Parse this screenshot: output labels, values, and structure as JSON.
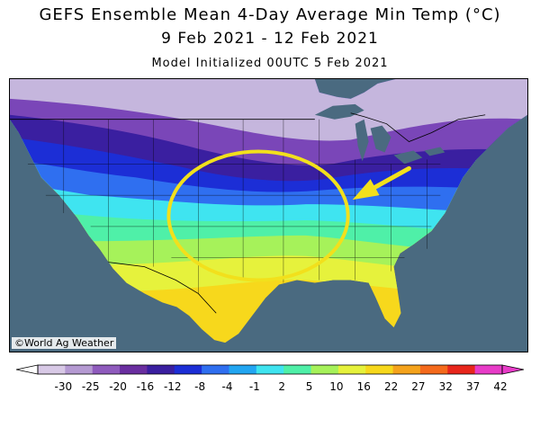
{
  "header": {
    "title": "GEFS Ensemble Mean 4-Day Average Min Temp (°C)",
    "date_range": "9 Feb 2021 - 12 Feb 2021",
    "init": "Model Initialized 00UTC 5 Feb 2021"
  },
  "credit": "©World Ag Weather",
  "legend": {
    "ticks": [
      "-30",
      "-25",
      "-20",
      "-16",
      "-12",
      "-8",
      "-4",
      "-1",
      "2",
      "5",
      "10",
      "16",
      "22",
      "27",
      "32",
      "37",
      "42"
    ],
    "colors": [
      "#d8c9e6",
      "#b59ad2",
      "#8f5bbd",
      "#6a2ea0",
      "#3a1fa0",
      "#1c2ed6",
      "#2f6ff0",
      "#22a6f2",
      "#3fe4f0",
      "#4ff0a8",
      "#a6f25a",
      "#e6f23c",
      "#f7d81c",
      "#f5a31c",
      "#f56a1c",
      "#e8261c",
      "#e83cc8"
    ]
  },
  "map": {
    "water_color": "#4a6a80",
    "annotation_color": "#f2e01c",
    "land_colors": [
      "#c5b6dd",
      "#7a46b8",
      "#3a1fa0",
      "#1c2ed6",
      "#2f6ff0",
      "#3fe4f0",
      "#4ff0a8",
      "#a6f25a",
      "#e6f23c",
      "#f7d81c"
    ]
  }
}
